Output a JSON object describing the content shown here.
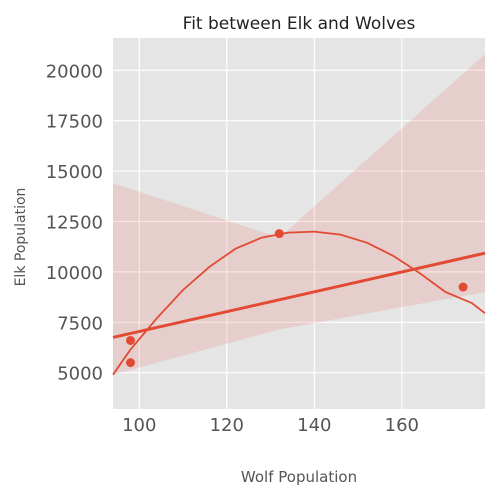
{
  "chart_data": {
    "type": "scatter",
    "title": "Fit between Elk and Wolves",
    "xlabel": "Wolf Population",
    "ylabel": "Elk Population",
    "xlim": [
      94,
      179
    ],
    "ylim": [
      3200,
      21600
    ],
    "x_ticks": [
      100,
      120,
      140,
      160
    ],
    "y_ticks": [
      5000,
      7500,
      10000,
      12500,
      15000,
      17500,
      20000
    ],
    "grid": true,
    "points": [
      {
        "x": 98,
        "y": 5500
      },
      {
        "x": 98,
        "y": 6600
      },
      {
        "x": 132,
        "y": 11900
      },
      {
        "x": 174,
        "y": 9250
      }
    ],
    "linear_fit": {
      "line": [
        [
          94,
          6750
        ],
        [
          179,
          10930
        ]
      ],
      "ci_upper": [
        [
          94,
          14400
        ],
        [
          132,
          11700
        ],
        [
          179,
          20800
        ]
      ],
      "ci_lower": [
        [
          94,
          4900
        ],
        [
          132,
          7150
        ],
        [
          179,
          9000
        ]
      ]
    },
    "quadratic_fit": [
      [
        94,
        4900
      ],
      [
        98,
        6150
      ],
      [
        104,
        7700
      ],
      [
        110,
        9100
      ],
      [
        116,
        10250
      ],
      [
        122,
        11150
      ],
      [
        128,
        11700
      ],
      [
        134,
        11950
      ],
      [
        140,
        12000
      ],
      [
        146,
        11850
      ],
      [
        152,
        11450
      ],
      [
        158,
        10800
      ],
      [
        164,
        9950
      ],
      [
        170,
        9000
      ],
      [
        176,
        8450
      ],
      [
        179,
        7950
      ]
    ],
    "colors": {
      "background": "#e5e5e5",
      "grid": "#ffffff",
      "points": "#e24a33",
      "fit_line": "#e24a33",
      "ci_band": "#e24a33",
      "text": "#222222",
      "tick_text": "#555555"
    }
  }
}
